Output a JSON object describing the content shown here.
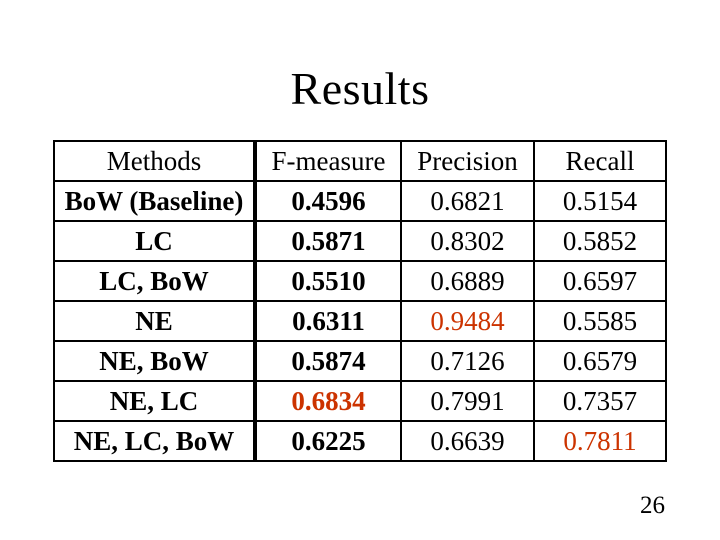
{
  "slide": {
    "title": "Results",
    "page_number": "26"
  },
  "table": {
    "columns": [
      "Methods",
      "F-measure",
      "Precision",
      "Recall"
    ],
    "rows": [
      {
        "cells": [
          "BoW (Baseline)",
          "0.4596",
          "0.6821",
          "0.5154"
        ],
        "highlight_cols": []
      },
      {
        "cells": [
          "LC",
          "0.5871",
          "0.8302",
          "0.5852"
        ],
        "highlight_cols": []
      },
      {
        "cells": [
          "LC, BoW",
          "0.5510",
          "0.6889",
          "0.6597"
        ],
        "highlight_cols": []
      },
      {
        "cells": [
          "NE",
          "0.6311",
          "0.9484",
          "0.5585"
        ],
        "highlight_cols": [
          2
        ]
      },
      {
        "cells": [
          "NE, BoW",
          "0.5874",
          "0.7126",
          "0.6579"
        ],
        "highlight_cols": []
      },
      {
        "cells": [
          "NE, LC",
          "0.6834",
          "0.7991",
          "0.7357"
        ],
        "highlight_cols": [
          1
        ]
      },
      {
        "cells": [
          "NE, LC, BoW",
          "0.6225",
          "0.6639",
          "0.7811"
        ],
        "highlight_cols": [
          3
        ]
      }
    ]
  },
  "colors": {
    "background": "#FFFFFF",
    "text": "#000000",
    "border": "#000000",
    "highlight": "#CC3300"
  }
}
